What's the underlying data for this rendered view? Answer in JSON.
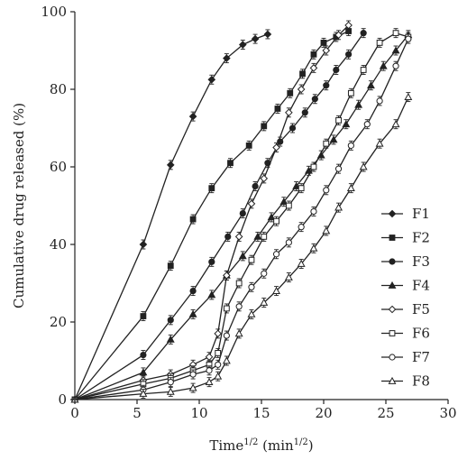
{
  "chart_data": {
    "type": "line",
    "xlabel": "Time",
    "xlabel_sup": "1/2",
    "xlabel_unit": " (min",
    "xlabel_unit_sup": "1/2",
    "xlabel_close": ")",
    "ylabel": "Cumulative drug released (%)",
    "xlim": [
      0,
      30
    ],
    "ylim": [
      0,
      100
    ],
    "xticks": [
      "0",
      "5",
      "10",
      "15",
      "20",
      "25",
      "30"
    ],
    "yticks": [
      "0",
      "20",
      "40",
      "60",
      "80",
      "100"
    ],
    "grid": false,
    "legend_position": "right",
    "series": [
      {
        "name": "F1",
        "marker": "diamond-filled",
        "x": [
          0,
          5.5,
          7.7,
          9.5,
          11,
          12.2,
          13.5,
          14.5,
          15.5
        ],
        "y": [
          0,
          40,
          60.5,
          73,
          82.5,
          88,
          91.5,
          93,
          94.2
        ]
      },
      {
        "name": "F2",
        "marker": "square-filled",
        "x": [
          0,
          5.5,
          7.7,
          9.5,
          11,
          12.5,
          14,
          15.2,
          16.3,
          17.3,
          18.3,
          19.2,
          20,
          21,
          22
        ],
        "y": [
          0,
          21.5,
          34.5,
          46.5,
          54.5,
          61,
          65.5,
          70.5,
          75,
          79,
          84,
          89,
          92,
          93.5,
          95
        ]
      },
      {
        "name": "F3",
        "marker": "circle-filled",
        "x": [
          0,
          5.5,
          7.7,
          9.5,
          11,
          12.3,
          13.5,
          14.5,
          15.5,
          16.5,
          17.5,
          18.5,
          19.3,
          20.2,
          21,
          22,
          23.2
        ],
        "y": [
          0,
          11.5,
          20.5,
          28,
          35.5,
          42,
          48,
          55,
          61,
          66.5,
          70,
          74,
          77.5,
          81,
          85,
          89,
          94.5
        ]
      },
      {
        "name": "F4",
        "marker": "triangle-filled",
        "x": [
          0,
          5.5,
          7.7,
          9.5,
          11,
          12.2,
          13.5,
          14.7,
          15.8,
          16.8,
          17.8,
          18.8,
          19.8,
          20.8,
          21.8,
          22.8,
          23.8,
          24.8,
          25.8,
          26.8
        ],
        "y": [
          0,
          7,
          15.5,
          22,
          27,
          32,
          37,
          42,
          47,
          51,
          55,
          59,
          63,
          67,
          71,
          76,
          81,
          86,
          90,
          94
        ]
      },
      {
        "name": "F5",
        "marker": "diamond-open",
        "x": [
          0,
          5.5,
          7.7,
          9.5,
          10.8,
          11.5,
          12.2,
          13.2,
          14.2,
          15.2,
          16.2,
          17.2,
          18.2,
          19.2,
          20.2,
          21.2,
          22
        ],
        "y": [
          0,
          5,
          6.5,
          9,
          11,
          17,
          32,
          42,
          50.5,
          57,
          65,
          74,
          80,
          85.5,
          90,
          94,
          96.5
        ]
      },
      {
        "name": "F6",
        "marker": "square-open",
        "x": [
          0,
          5.5,
          7.7,
          9.5,
          10.8,
          11.5,
          12.2,
          13.2,
          14.2,
          15.2,
          16.2,
          17.2,
          18.2,
          19.2,
          20.2,
          21.2,
          22.2,
          23.2,
          24.5,
          25.8,
          26.8
        ],
        "y": [
          0,
          4,
          5.5,
          7.5,
          9,
          12,
          23.5,
          30,
          36,
          42,
          46,
          50,
          54.5,
          60,
          66,
          72,
          79,
          85,
          92,
          94.5,
          93.5
        ]
      },
      {
        "name": "F7",
        "marker": "circle-open",
        "x": [
          0,
          5.5,
          7.7,
          9.5,
          10.8,
          11.5,
          12.2,
          13.2,
          14.2,
          15.2,
          16.2,
          17.2,
          18.2,
          19.2,
          20.2,
          21.2,
          22.2,
          23.5,
          24.5,
          25.8,
          26.8
        ],
        "y": [
          0,
          2.5,
          4.5,
          6.5,
          7.5,
          9,
          16.5,
          24,
          29,
          32.5,
          37.5,
          40.5,
          44.5,
          48.5,
          54,
          59.5,
          65.5,
          71,
          77,
          86,
          93
        ]
      },
      {
        "name": "F8",
        "marker": "triangle-open",
        "x": [
          0,
          5.5,
          7.7,
          9.5,
          10.8,
          11.5,
          12.2,
          13.2,
          14.2,
          15.2,
          16.2,
          17.2,
          18.2,
          19.2,
          20.2,
          21.2,
          22.2,
          23.2,
          24.5,
          25.8,
          26.8
        ],
        "y": [
          0,
          1.5,
          2,
          3,
          4.5,
          6,
          10,
          17,
          22,
          25,
          28,
          31.5,
          35,
          39,
          43.5,
          49.5,
          54.5,
          60,
          66,
          71,
          78
        ]
      }
    ]
  }
}
